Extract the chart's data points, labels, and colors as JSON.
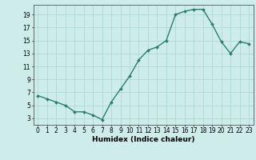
{
  "x": [
    0,
    1,
    2,
    3,
    4,
    5,
    6,
    7,
    8,
    9,
    10,
    11,
    12,
    13,
    14,
    15,
    16,
    17,
    18,
    19,
    20,
    21,
    22,
    23
  ],
  "y": [
    6.5,
    6.0,
    5.5,
    5.0,
    4.0,
    4.0,
    3.5,
    2.8,
    5.5,
    7.5,
    9.5,
    12.0,
    13.5,
    14.0,
    15.0,
    19.0,
    19.5,
    19.8,
    19.8,
    17.5,
    14.8,
    13.0,
    14.8,
    14.5
  ],
  "line_color": "#2e7d6e",
  "marker": "D",
  "marker_size": 2.0,
  "bg_color": "#ceecea",
  "grid_color": "#aed8d4",
  "xlabel": "Humidex (Indice chaleur)",
  "ylabel_ticks": [
    3,
    5,
    7,
    9,
    11,
    13,
    15,
    17,
    19
  ],
  "ylim": [
    2.0,
    20.5
  ],
  "xlim": [
    -0.5,
    23.5
  ],
  "xtick_labels": [
    "0",
    "1",
    "2",
    "3",
    "4",
    "5",
    "6",
    "7",
    "8",
    "9",
    "10",
    "11",
    "12",
    "13",
    "14",
    "15",
    "16",
    "17",
    "18",
    "19",
    "20",
    "21",
    "22",
    "23"
  ],
  "axis_color": "#555555",
  "font_size_label": 6.5,
  "font_size_tick": 5.5,
  "linewidth": 1.0
}
